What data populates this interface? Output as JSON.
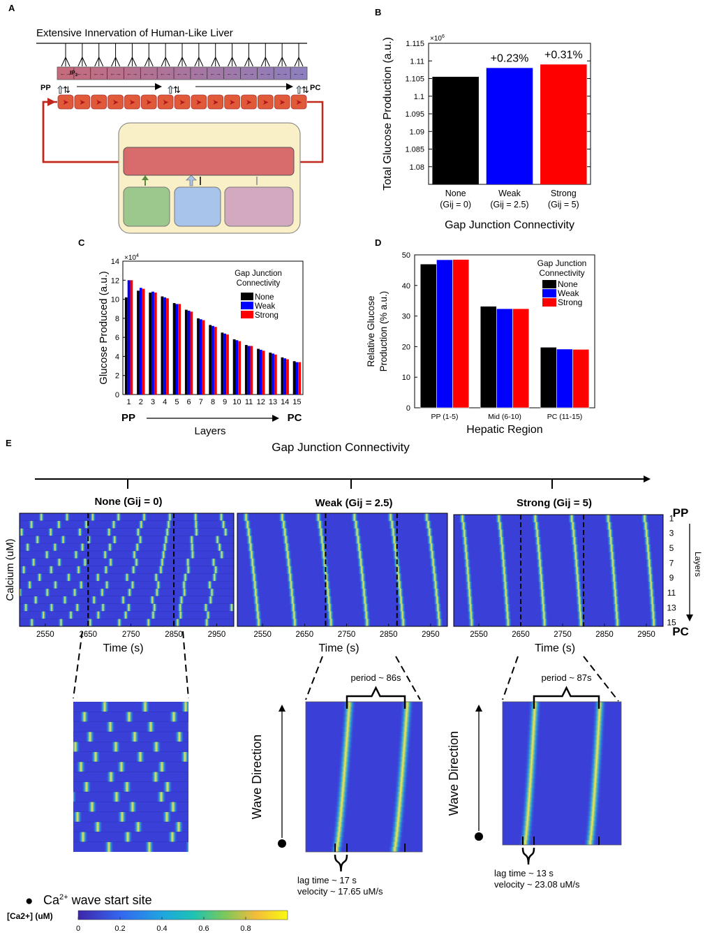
{
  "colors": {
    "none": "#000000",
    "weak": "#0000ff",
    "strong": "#ff0000",
    "hepatocyte": "#e05a3a",
    "lumen_start": "#c76b7a",
    "lumen_end": "#8d7fc0",
    "cell_box": "#faf0c8",
    "inner_bar": "#d86b6b",
    "green_box": "#9dc88d",
    "blue_box": "#a9c4ea",
    "pink_box": "#d3a9c0",
    "feedback_arrow": "#c0281c",
    "heat_bg": "#3a3fd8",
    "heat_mid": "#2a9fd6",
    "heat_peak": "#f4e64a"
  },
  "panel_labels": {
    "a": "A",
    "b": "B",
    "c": "C",
    "d": "D",
    "e": "E"
  },
  "panel_a": {
    "title": "Extensive Innervation of Human-Like Liver",
    "pp_label": "PP",
    "pc_label": "PC",
    "ip_label": "IP",
    "ip_sub": "3",
    "n_cells": 15,
    "n_nerves": 15
  },
  "chart_data": [
    {
      "id": "B",
      "type": "bar",
      "categories": [
        "None (Gij = 0)",
        "Weak (Gij = 2.5)",
        "Strong (Gij = 5)"
      ],
      "category_lines": [
        [
          "None",
          "(Gij = 0)"
        ],
        [
          "Weak",
          "(Gij = 2.5)"
        ],
        [
          "Strong",
          "(Gij = 5)"
        ]
      ],
      "values": [
        1.1055,
        1.108,
        1.109
      ],
      "bar_colors": [
        "#000000",
        "#0000ff",
        "#ff0000"
      ],
      "data_labels": [
        "",
        "+0.23%",
        "+0.31%"
      ],
      "ylim": [
        1.075,
        1.115
      ],
      "yticks": [
        1.08,
        1.085,
        1.09,
        1.095,
        1.1,
        1.105,
        1.11,
        1.115
      ],
      "ytick_labels": [
        "1.08",
        "1.085",
        "1.09",
        "1.095",
        "1.1",
        "1.105",
        "1.11",
        "1.115"
      ],
      "exponent_label": "×10",
      "exponent_power": "6",
      "ylabel": "Total Glucose Production (a.u.)",
      "xlabel": "Gap Junction Connectivity"
    },
    {
      "id": "C",
      "type": "bar",
      "categories": [
        "1",
        "2",
        "3",
        "4",
        "5",
        "6",
        "7",
        "8",
        "9",
        "10",
        "11",
        "12",
        "13",
        "14",
        "15"
      ],
      "series": [
        {
          "name": "None",
          "color": "#000000",
          "values": [
            10.2,
            10.9,
            10.7,
            10.3,
            9.6,
            8.9,
            8.0,
            7.3,
            6.5,
            5.8,
            5.2,
            4.8,
            4.4,
            3.9,
            3.5
          ]
        },
        {
          "name": "Weak",
          "color": "#0000ff",
          "values": [
            12.0,
            11.2,
            10.8,
            10.2,
            9.5,
            8.8,
            7.9,
            7.2,
            6.4,
            5.7,
            5.1,
            4.7,
            4.3,
            3.8,
            3.4
          ]
        },
        {
          "name": "Strong",
          "color": "#ff0000",
          "values": [
            12.0,
            11.1,
            10.7,
            10.1,
            9.5,
            8.7,
            7.8,
            7.1,
            6.3,
            5.6,
            5.1,
            4.6,
            4.2,
            3.7,
            3.4
          ]
        }
      ],
      "ylim": [
        0,
        14
      ],
      "yticks": [
        0,
        2,
        4,
        6,
        8,
        10,
        12,
        14
      ],
      "exponent_label": "×10",
      "exponent_power": "4",
      "ylabel": "Glucose Produced (a.u.)",
      "xlabel": "Layers",
      "x_start": "PP",
      "x_end": "PC",
      "legend_title": [
        "Gap Junction",
        "Connectivity"
      ],
      "legend": [
        "None",
        "Weak",
        "Strong"
      ]
    },
    {
      "id": "D",
      "type": "bar",
      "categories": [
        "PP (1-5)",
        "Mid (6-10)",
        "PC (11-15)"
      ],
      "series": [
        {
          "name": "None",
          "color": "#000000",
          "values": [
            47.0,
            33.2,
            19.8
          ]
        },
        {
          "name": "Weak",
          "color": "#0000ff",
          "values": [
            48.4,
            32.4,
            19.2
          ]
        },
        {
          "name": "Strong",
          "color": "#ff0000",
          "values": [
            48.5,
            32.4,
            19.1
          ]
        }
      ],
      "ylim": [
        0,
        50
      ],
      "yticks": [
        0,
        10,
        20,
        30,
        40,
        50
      ],
      "ylabel_lines": [
        "Relative Glucose",
        "Production (% a.u.)"
      ],
      "xlabel": "Hepatic Region",
      "legend_title": [
        "Gap Junction",
        "Connectivity"
      ],
      "legend": [
        "None",
        "Weak",
        "Strong"
      ]
    },
    {
      "id": "E",
      "type": "heatmap",
      "title": "Gap Junction Connectivity",
      "conditions": [
        {
          "name": "None (Gij = 0)",
          "synchronized": false
        },
        {
          "name": "Weak (Gij = 2.5)",
          "synchronized": true,
          "period_s": 86,
          "lag_s": 17,
          "velocity_uM_s": 17.65
        },
        {
          "name": "Strong (Gij = 5)",
          "synchronized": true,
          "period_s": 87,
          "lag_s": 13,
          "velocity_uM_s": 23.08
        }
      ],
      "x_range_s": [
        2490,
        2990
      ],
      "xticks": [
        2550,
        2650,
        2750,
        2850,
        2950
      ],
      "xlabel": "Time (s)",
      "ylabel": "Calcium (uM)",
      "layer_ticks": [
        1,
        3,
        5,
        7,
        9,
        11,
        13,
        15
      ],
      "layer_axis_label": "Layers",
      "pp_label": "PP",
      "pc_label": "PC",
      "colorbar": {
        "label": "[Ca2+] (uM)",
        "range": [
          0,
          1
        ],
        "ticks": [
          0,
          0.2,
          0.4,
          0.6,
          0.8
        ]
      },
      "annotations": {
        "weak_period": "period ~ 86s",
        "strong_period": "period ~ 87s",
        "weak_lag": "lag time ~ 17 s",
        "weak_velocity": "velocity ~ 17.65 uM/s",
        "strong_lag": "lag time ~ 13 s",
        "strong_velocity": "velocity ~ 23.08 uM/s",
        "wave_direction": "Wave Direction",
        "start_site_prefix": "Ca",
        "start_site_sup": "2+",
        "start_site_suffix": " wave start site"
      }
    }
  ]
}
